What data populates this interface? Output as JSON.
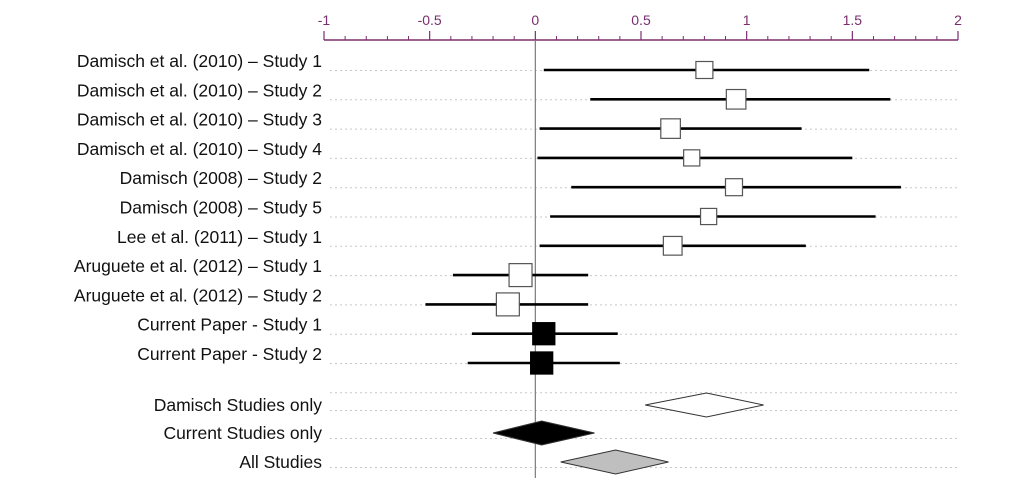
{
  "chart_data": {
    "type": "forest",
    "title": "",
    "xlabel": "",
    "ylabel": "",
    "xlim": [
      -1,
      2
    ],
    "x_ticks": [
      -1,
      -0.5,
      0,
      0.5,
      1,
      1.5,
      2
    ],
    "x_tick_labels": [
      "-1",
      "-0.5",
      "0",
      "0.5",
      "1",
      "1.5",
      "2"
    ],
    "x_minor_step": 0.1,
    "axis_position": "top",
    "axis_color": "#7a2e6e",
    "reference_line_x": 0,
    "grid": "dotted-horizontal",
    "marker_size_scale": "study weight",
    "studies": [
      {
        "label": "Damisch et al. (2010) – Study 1",
        "estimate": 0.8,
        "ci": [
          0.04,
          1.58
        ],
        "marker": "open",
        "weight": 1.0
      },
      {
        "label": "Damisch et al. (2010) – Study 2",
        "estimate": 0.95,
        "ci": [
          0.26,
          1.68
        ],
        "marker": "open",
        "weight": 1.15
      },
      {
        "label": "Damisch et al. (2010) – Study 3",
        "estimate": 0.64,
        "ci": [
          0.02,
          1.26
        ],
        "marker": "open",
        "weight": 1.15
      },
      {
        "label": "Damisch et al. (2010) – Study 4",
        "estimate": 0.74,
        "ci": [
          0.01,
          1.5
        ],
        "marker": "open",
        "weight": 0.95
      },
      {
        "label": "Damisch (2008) – Study 2",
        "estimate": 0.94,
        "ci": [
          0.17,
          1.73
        ],
        "marker": "open",
        "weight": 1.0
      },
      {
        "label": "Damisch (2008) – Study 5",
        "estimate": 0.82,
        "ci": [
          0.07,
          1.61
        ],
        "marker": "open",
        "weight": 0.95
      },
      {
        "label": "Lee et al. (2011) – Study 1",
        "estimate": 0.65,
        "ci": [
          0.02,
          1.28
        ],
        "marker": "open",
        "weight": 1.1
      },
      {
        "label": "Aruguete et al. (2012) – Study 1",
        "estimate": -0.07,
        "ci": [
          -0.39,
          0.25
        ],
        "marker": "open",
        "weight": 1.35
      },
      {
        "label": "Aruguete et al. (2012) – Study 2",
        "estimate": -0.13,
        "ci": [
          -0.52,
          0.25
        ],
        "marker": "open",
        "weight": 1.35
      },
      {
        "label": "Current Paper - Study 1",
        "estimate": 0.04,
        "ci": [
          -0.3,
          0.39
        ],
        "marker": "filled",
        "weight": 1.3
      },
      {
        "label": "Current Paper - Study 2",
        "estimate": 0.03,
        "ci": [
          -0.32,
          0.4
        ],
        "marker": "filled",
        "weight": 1.3
      }
    ],
    "pooled": [
      {
        "label": "Damisch Studies only",
        "estimate": 0.81,
        "ci": [
          0.52,
          1.08
        ],
        "color": "#ffffff"
      },
      {
        "label": "Current Studies only",
        "estimate": 0.03,
        "ci": [
          -0.2,
          0.28
        ],
        "color": "#000000"
      },
      {
        "label": "All Studies",
        "estimate": 0.38,
        "ci": [
          0.12,
          0.63
        ],
        "color": "#bfbfbf"
      }
    ]
  }
}
